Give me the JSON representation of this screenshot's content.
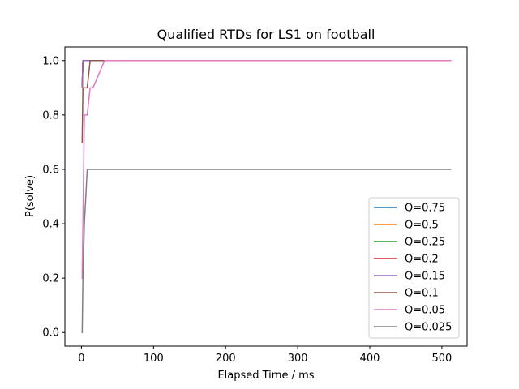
{
  "chart_data": {
    "type": "line",
    "title": "Qualified RTDs for LS1 on football",
    "xlabel": "Elapsed Time / ms",
    "ylabel": "P(solve)",
    "xlim": [
      -23,
      535
    ],
    "ylim": [
      -0.05,
      1.05
    ],
    "xticks": [
      0,
      100,
      200,
      300,
      400,
      500
    ],
    "yticks": [
      0.0,
      0.2,
      0.4,
      0.6,
      0.8,
      1.0
    ],
    "xtick_labels": [
      "0",
      "100",
      "200",
      "300",
      "400",
      "500"
    ],
    "ytick_labels": [
      "0.0",
      "0.2",
      "0.4",
      "0.6",
      "0.8",
      "1.0"
    ],
    "legend_position": "lower-right",
    "grid": false,
    "series": [
      {
        "name": "Q=0.75",
        "color": "#1f77b4",
        "x": [
          1,
          2,
          512
        ],
        "y": [
          0.9,
          1.0,
          1.0
        ]
      },
      {
        "name": "Q=0.5",
        "color": "#ff7f0e",
        "x": [
          1,
          2,
          512
        ],
        "y": [
          0.9,
          1.0,
          1.0
        ]
      },
      {
        "name": "Q=0.25",
        "color": "#2ca02c",
        "x": [
          1,
          2,
          512
        ],
        "y": [
          0.9,
          1.0,
          1.0
        ]
      },
      {
        "name": "Q=0.2",
        "color": "#d62728",
        "x": [
          1,
          2,
          512
        ],
        "y": [
          0.9,
          1.0,
          1.0
        ]
      },
      {
        "name": "Q=0.15",
        "color": "#9467bd",
        "x": [
          1,
          2,
          512
        ],
        "y": [
          0.9,
          1.0,
          1.0
        ]
      },
      {
        "name": "Q=0.1",
        "color": "#8c564b",
        "x": [
          1,
          2,
          8,
          12,
          512
        ],
        "y": [
          0.7,
          0.9,
          0.9,
          1.0,
          1.0
        ]
      },
      {
        "name": "Q=0.05",
        "color": "#e377c2",
        "x": [
          1,
          4,
          8,
          12,
          16,
          32,
          512
        ],
        "y": [
          0.2,
          0.8,
          0.8,
          0.9,
          0.9,
          1.0,
          1.0
        ]
      },
      {
        "name": "Q=0.025",
        "color": "#7f7f7f",
        "x": [
          1,
          2,
          4,
          8,
          512
        ],
        "y": [
          0.0,
          0.2,
          0.4,
          0.6,
          0.6
        ]
      }
    ]
  }
}
